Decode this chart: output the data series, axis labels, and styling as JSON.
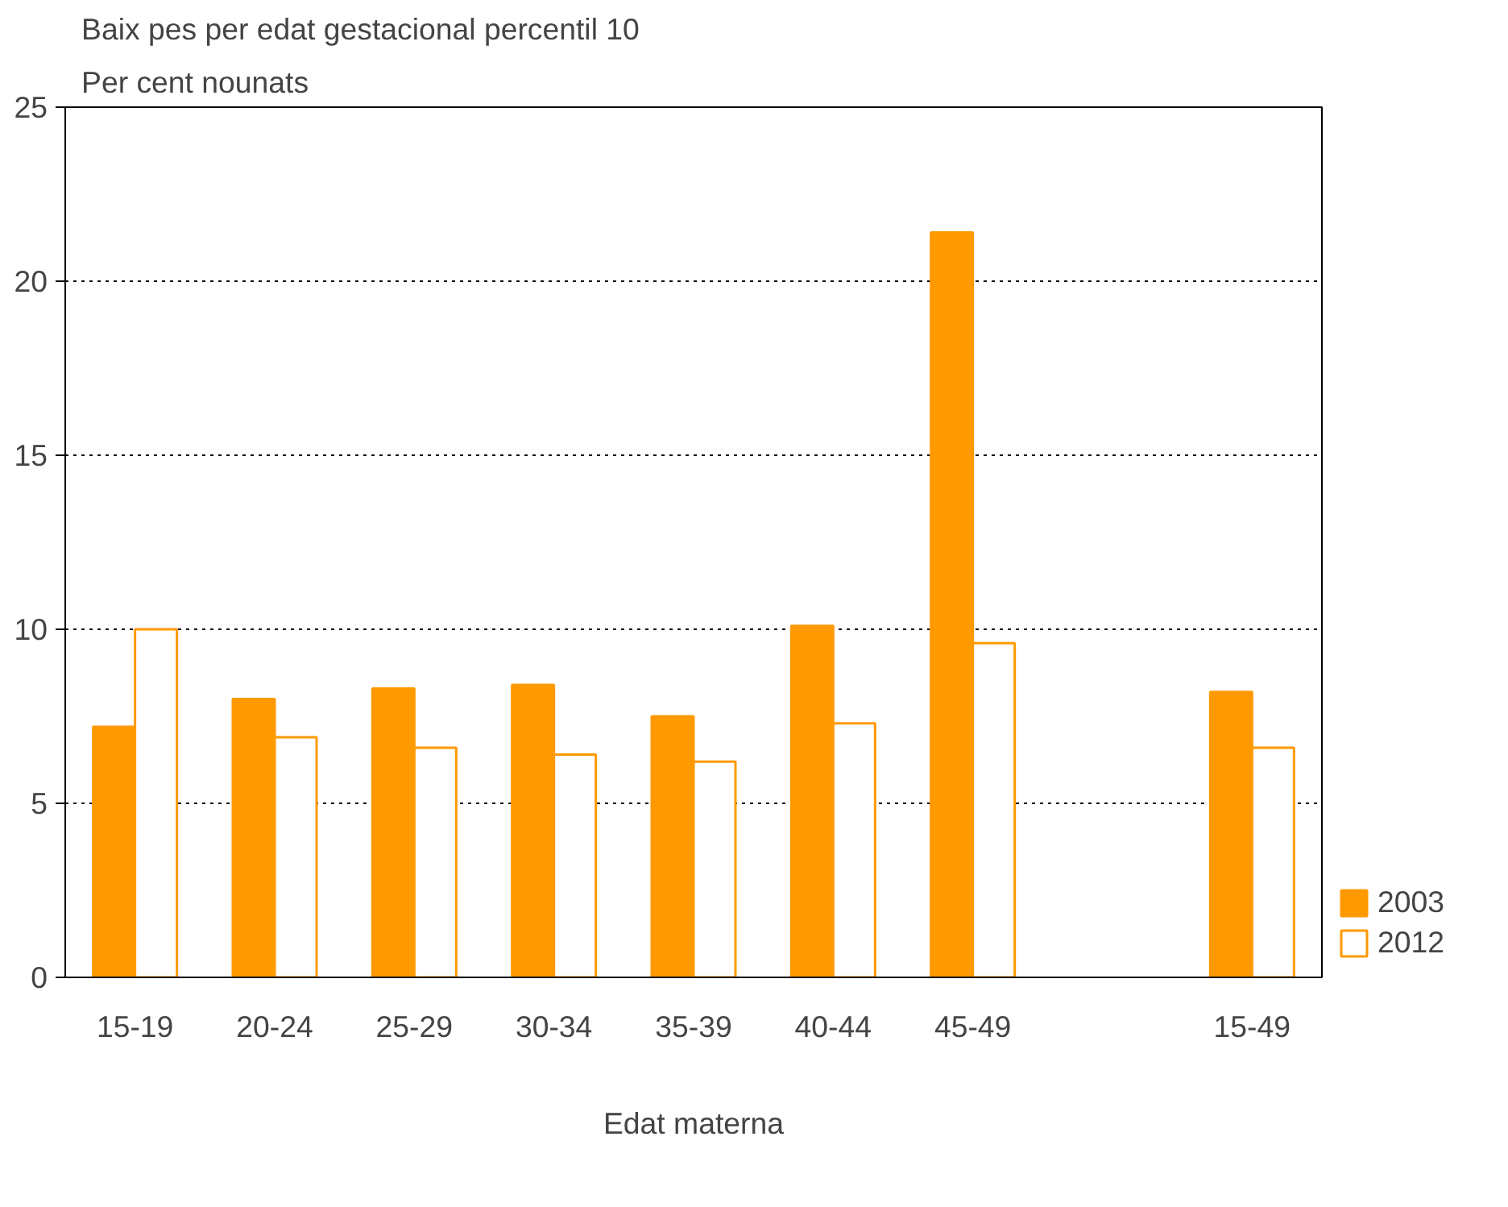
{
  "chart_data": {
    "type": "bar",
    "title": "Baix pes per edat gestacional percentil 10",
    "subtitle": "Per cent nounats",
    "xlabel": "Edat materna",
    "categories": [
      "15-19",
      "20-24",
      "25-29",
      "30-34",
      "35-39",
      "40-44",
      "45-49",
      null,
      "15-49"
    ],
    "series": [
      {
        "name": "2003",
        "color": "#ff9900",
        "values": [
          7.2,
          8.0,
          8.3,
          8.4,
          7.5,
          10.1,
          21.4,
          null,
          8.2
        ]
      },
      {
        "name": "2012",
        "color": "#ffffff",
        "values": [
          10.0,
          6.9,
          6.6,
          6.4,
          6.2,
          7.3,
          9.6,
          null,
          6.6
        ]
      }
    ],
    "ylim": [
      0,
      25
    ],
    "yticks": [
      0,
      5,
      10,
      15,
      20,
      25
    ],
    "grid": "y",
    "legend": "right"
  }
}
